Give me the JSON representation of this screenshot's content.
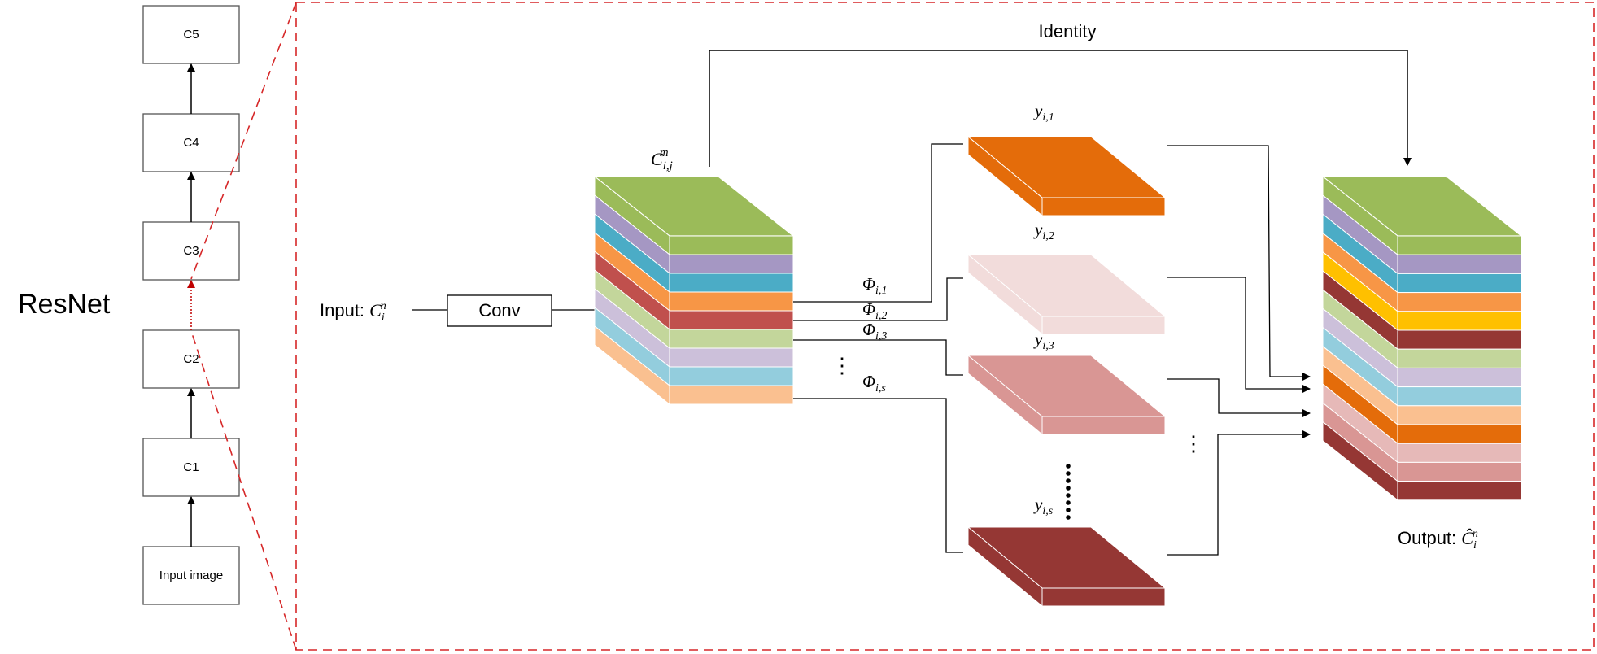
{
  "left_panel": {
    "title": "ResNet",
    "stages": [
      "C5",
      "C4",
      "C3",
      "C2",
      "C1",
      "Input image"
    ]
  },
  "detail": {
    "conv_label": "Conv",
    "input": {
      "prefix": "Input: ",
      "symbol": "C",
      "sub": "i",
      "sup": "n"
    },
    "stacked_map": {
      "symbol": "C",
      "sub": "i,j",
      "sup": "m"
    },
    "identity_label": "Identity",
    "phi": {
      "symbol": "Φ",
      "subscripts": [
        "i,1",
        "i,2",
        "i,3",
        "i,s"
      ]
    },
    "ghost": {
      "symbol": "y",
      "subscripts": [
        "i,1",
        "i,2",
        "i,3",
        "i,s"
      ]
    },
    "output": {
      "prefix": "Output: ",
      "symbol": "Ĉ",
      "sub": "i",
      "sup": "n"
    },
    "ellipsis": "⋮"
  },
  "colors": {
    "dashed_frame": "#d62728",
    "stack_layers": [
      "#9bbb59",
      "#a597c3",
      "#4bacc6",
      "#f79646",
      "#c0504d",
      "#c3d69b",
      "#ccc0da",
      "#93cddd",
      "#fac090"
    ],
    "output_layers": [
      "#9bbb59",
      "#a597c3",
      "#4bacc6",
      "#f79646",
      "#ffc000",
      "#953734",
      "#c3d69b",
      "#ccc0da",
      "#93cddd",
      "#fac090",
      "#e46c0a",
      "#e6b9b8",
      "#d99694",
      "#953734"
    ],
    "ghost_plates": [
      "#e46c0a",
      "#f2dcdb",
      "#d99694",
      "#953734"
    ]
  }
}
